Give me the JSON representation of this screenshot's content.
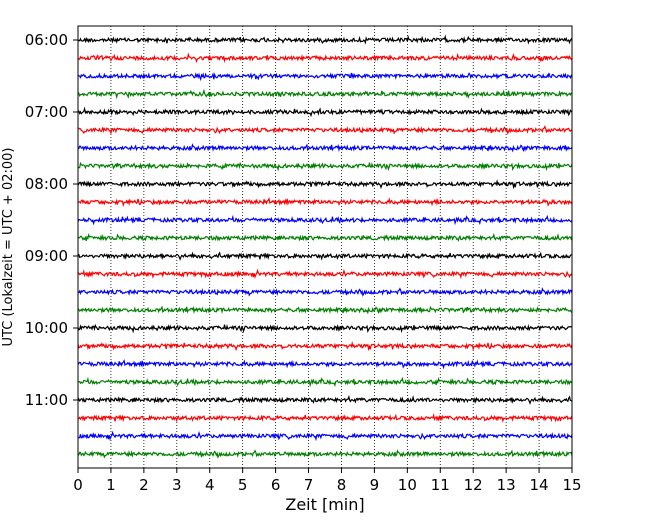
{
  "chart_data": {
    "type": "line",
    "chart_kind": "helicorder",
    "xlabel": "Zeit  [min]",
    "ylabel": "UTC (Lokalzeit = UTC + 02:00)",
    "xlim": [
      0,
      15
    ],
    "x_ticks": [
      0,
      1,
      2,
      3,
      4,
      5,
      6,
      7,
      8,
      9,
      10,
      11,
      12,
      13,
      14,
      15
    ],
    "y_tick_labels": [
      "06:00",
      "07:00",
      "08:00",
      "09:00",
      "10:00",
      "11:00"
    ],
    "trace_start_times": [
      "06:00",
      "06:15",
      "06:30",
      "06:45",
      "07:00",
      "07:15",
      "07:30",
      "07:45",
      "08:00",
      "08:15",
      "08:30",
      "08:45",
      "09:00",
      "09:15",
      "09:30",
      "09:45",
      "10:00",
      "10:15",
      "10:30",
      "10:45",
      "11:00",
      "11:15",
      "11:30",
      "11:45"
    ],
    "trace_minutes": 15,
    "colors": [
      "#000000",
      "#ff0000",
      "#0000ff",
      "#008000"
    ],
    "grid": {
      "x": true,
      "y": false,
      "style": "dotted"
    }
  }
}
